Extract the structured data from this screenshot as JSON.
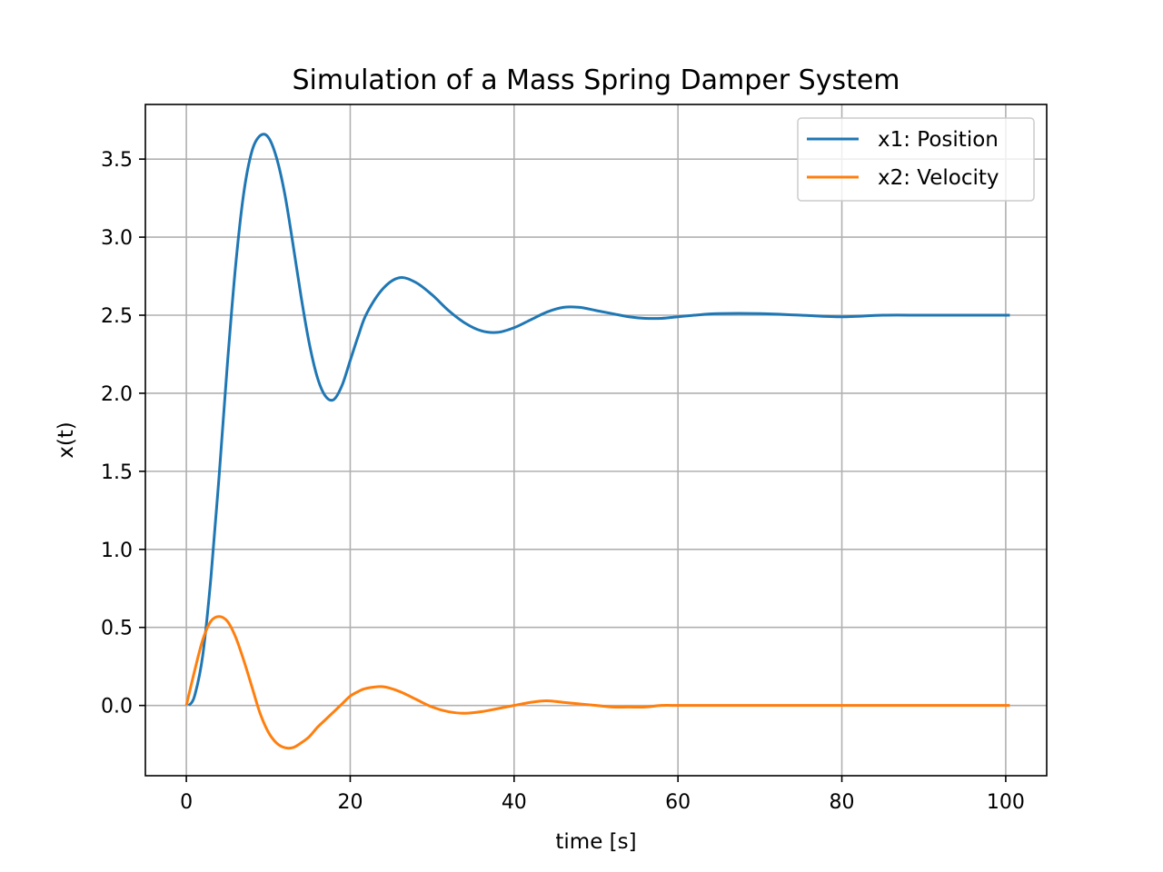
{
  "chart_data": {
    "type": "line",
    "title": "Simulation of a Mass Spring Damper System",
    "xlabel": "time [s]",
    "ylabel": "x(t)",
    "xlim": [
      -5,
      105
    ],
    "ylim": [
      -0.45,
      3.85
    ],
    "xticks": [
      0,
      20,
      40,
      60,
      80,
      100
    ],
    "yticks": [
      0.0,
      0.5,
      1.0,
      1.5,
      2.0,
      2.5,
      3.0,
      3.5
    ],
    "xtick_labels": [
      "0",
      "20",
      "40",
      "60",
      "80",
      "100"
    ],
    "ytick_labels": [
      "0.0",
      "0.5",
      "1.0",
      "1.5",
      "2.0",
      "2.5",
      "3.0",
      "3.5"
    ],
    "grid": true,
    "legend_position": "top-right",
    "series": [
      {
        "name": "x1: Position",
        "color": "#1f77b4",
        "x": [
          0.3,
          1,
          2,
          3,
          4,
          5,
          6,
          7,
          8,
          9,
          10,
          11,
          12,
          13,
          14,
          15,
          16,
          17,
          18,
          19,
          20,
          21,
          22,
          24,
          26,
          28,
          30,
          32,
          34,
          36,
          38,
          40,
          42,
          44,
          46,
          48,
          50,
          52,
          54,
          56,
          58,
          60,
          62,
          65,
          70,
          75,
          80,
          85,
          90,
          95,
          100.5
        ],
        "y": [
          0.0,
          0.06,
          0.32,
          0.82,
          1.47,
          2.18,
          2.81,
          3.28,
          3.55,
          3.65,
          3.64,
          3.51,
          3.28,
          2.96,
          2.62,
          2.32,
          2.1,
          1.98,
          1.96,
          2.05,
          2.21,
          2.37,
          2.51,
          2.67,
          2.74,
          2.71,
          2.63,
          2.53,
          2.45,
          2.4,
          2.39,
          2.42,
          2.47,
          2.52,
          2.55,
          2.55,
          2.53,
          2.51,
          2.49,
          2.48,
          2.48,
          2.49,
          2.5,
          2.51,
          2.51,
          2.5,
          2.49,
          2.5,
          2.5,
          2.5,
          2.5
        ]
      },
      {
        "name": "x2: Velocity",
        "color": "#ff7f0e",
        "x": [
          0,
          1,
          2,
          3,
          4,
          5,
          6,
          7,
          8,
          9,
          10,
          11,
          12,
          13,
          14,
          15,
          16,
          17,
          18,
          19,
          20,
          21,
          22,
          24,
          26,
          28,
          30,
          32,
          34,
          36,
          38,
          40,
          42,
          44,
          46,
          48,
          50,
          52,
          54,
          56,
          58,
          60,
          62,
          65,
          70,
          75,
          80,
          85,
          90,
          95,
          100.5
        ],
        "y": [
          0.0,
          0.22,
          0.42,
          0.54,
          0.57,
          0.54,
          0.44,
          0.29,
          0.12,
          -0.05,
          -0.17,
          -0.24,
          -0.27,
          -0.27,
          -0.24,
          -0.2,
          -0.14,
          -0.09,
          -0.04,
          0.01,
          0.06,
          0.09,
          0.11,
          0.12,
          0.09,
          0.04,
          -0.01,
          -0.04,
          -0.05,
          -0.04,
          -0.02,
          0.0,
          0.02,
          0.03,
          0.02,
          0.01,
          0.0,
          -0.01,
          -0.01,
          -0.01,
          0.0,
          0.0,
          0.0,
          0.0,
          0.0,
          0.0,
          0.0,
          0.0,
          0.0,
          0.0,
          0.0
        ]
      }
    ]
  }
}
